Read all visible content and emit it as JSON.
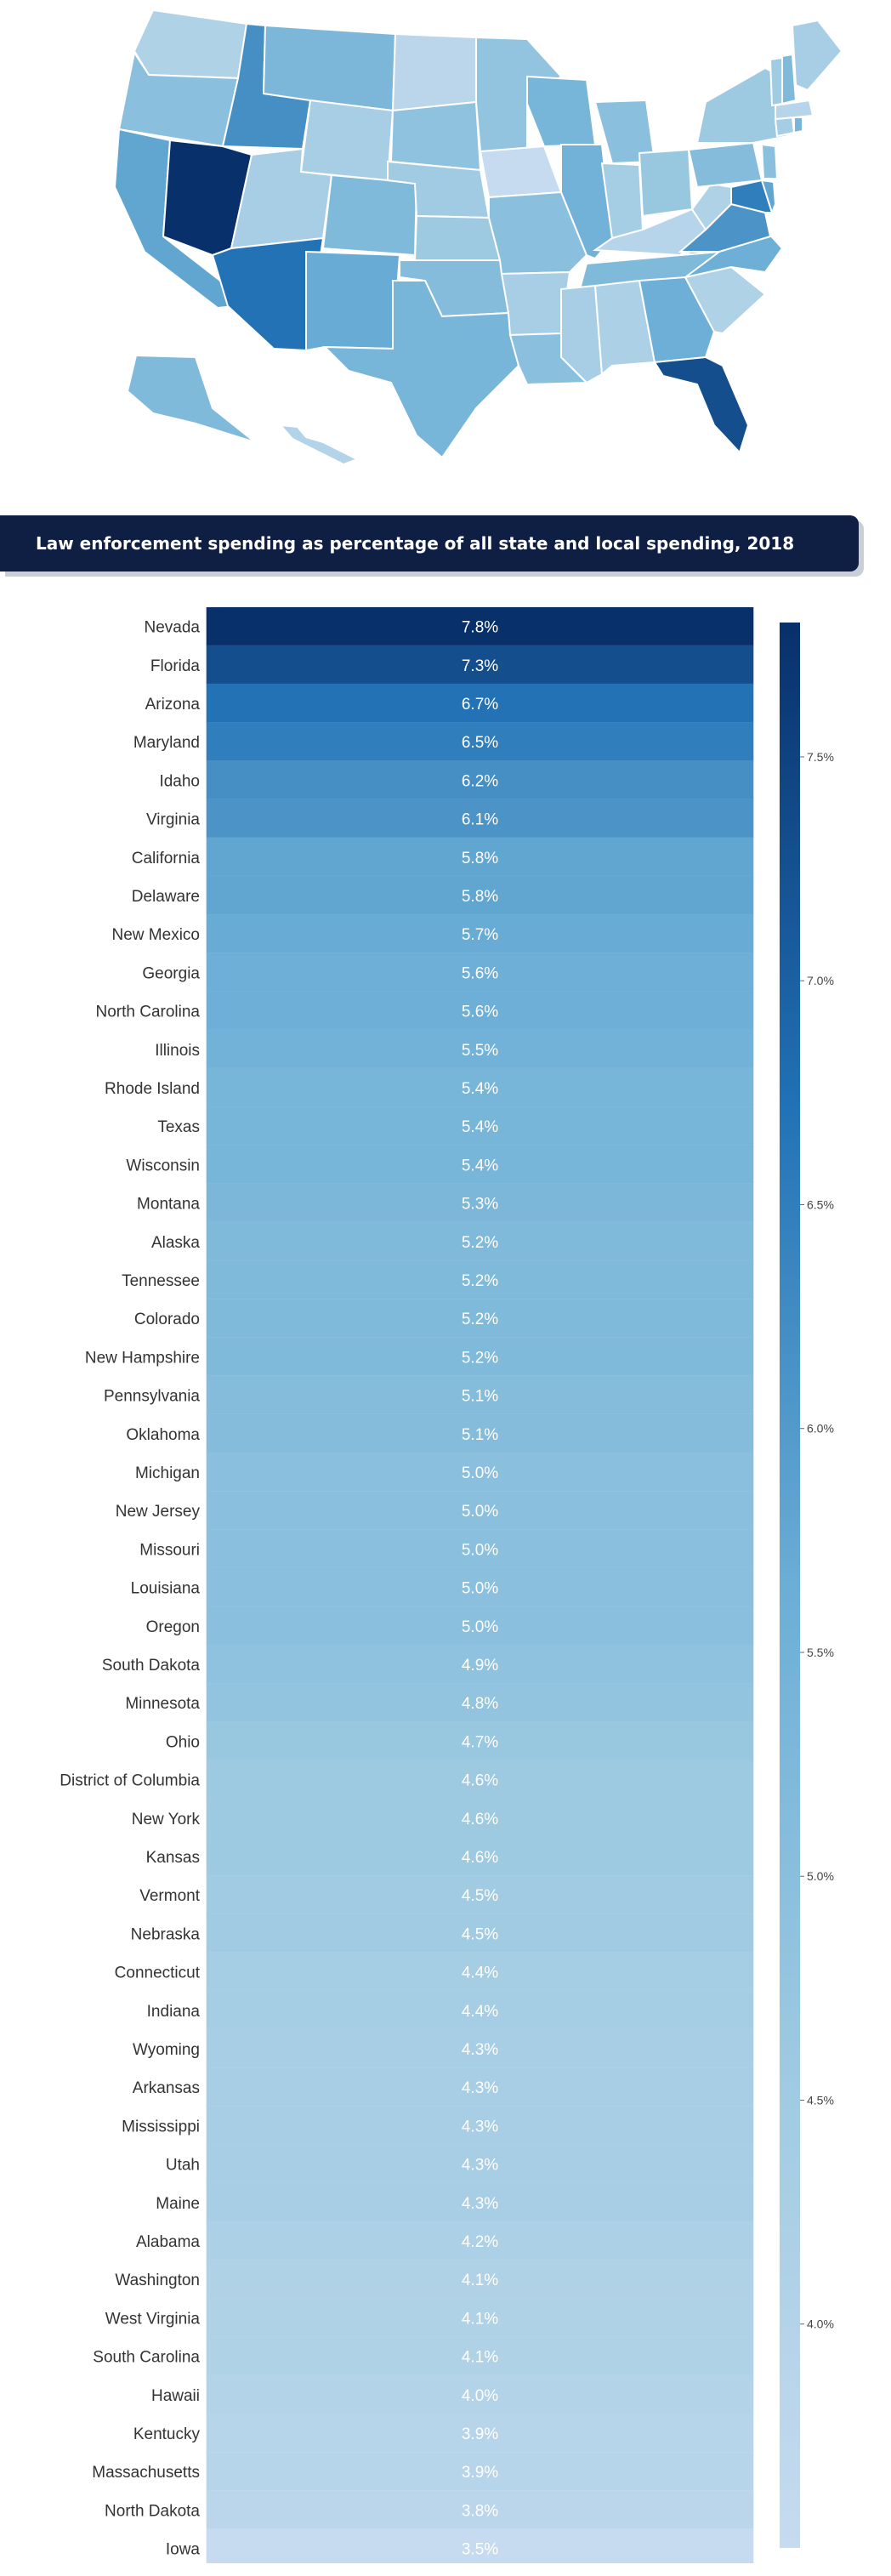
{
  "title": "Law enforcement spending as percentage of all state and local spending, 2018",
  "colors": {
    "low": "#c6dbef",
    "high": "#08306b",
    "banner": "#0f1f44"
  },
  "chart_data": {
    "type": "heatmap",
    "title": "Law enforcement spending as percentage of all state and local spending, 2018",
    "unit": "%",
    "categories": [
      "Nevada",
      "Florida",
      "Arizona",
      "Maryland",
      "Idaho",
      "Virginia",
      "California",
      "Delaware",
      "New Mexico",
      "Georgia",
      "North Carolina",
      "Illinois",
      "Rhode Island",
      "Texas",
      "Wisconsin",
      "Montana",
      "Alaska",
      "Tennessee",
      "Colorado",
      "New Hampshire",
      "Pennsylvania",
      "Oklahoma",
      "Michigan",
      "New Jersey",
      "Missouri",
      "Louisiana",
      "Oregon",
      "South Dakota",
      "Minnesota",
      "Ohio",
      "District of Columbia",
      "New York",
      "Kansas",
      "Vermont",
      "Nebraska",
      "Connecticut",
      "Indiana",
      "Wyoming",
      "Arkansas",
      "Mississippi",
      "Utah",
      "Maine",
      "Alabama",
      "Washington",
      "West Virginia",
      "South Carolina",
      "Hawaii",
      "Kentucky",
      "Massachusetts",
      "North Dakota",
      "Iowa"
    ],
    "values": [
      7.8,
      7.3,
      6.7,
      6.5,
      6.2,
      6.1,
      5.8,
      5.8,
      5.7,
      5.6,
      5.6,
      5.5,
      5.4,
      5.4,
      5.4,
      5.3,
      5.2,
      5.2,
      5.2,
      5.2,
      5.1,
      5.1,
      5.0,
      5.0,
      5.0,
      5.0,
      5.0,
      4.9,
      4.8,
      4.7,
      4.6,
      4.6,
      4.6,
      4.5,
      4.5,
      4.4,
      4.4,
      4.3,
      4.3,
      4.3,
      4.3,
      4.3,
      4.2,
      4.1,
      4.1,
      4.1,
      4.0,
      3.9,
      3.9,
      3.8,
      3.5
    ],
    "value_labels": [
      "7.8%",
      "7.3%",
      "6.7%",
      "6.5%",
      "6.2%",
      "6.1%",
      "5.8%",
      "5.8%",
      "5.7%",
      "5.6%",
      "5.6%",
      "5.5%",
      "5.4%",
      "5.4%",
      "5.4%",
      "5.3%",
      "5.2%",
      "5.2%",
      "5.2%",
      "5.2%",
      "5.1%",
      "5.1%",
      "5.0%",
      "5.0%",
      "5.0%",
      "5.0%",
      "5.0%",
      "4.9%",
      "4.8%",
      "4.7%",
      "4.6%",
      "4.6%",
      "4.6%",
      "4.5%",
      "4.5%",
      "4.4%",
      "4.4%",
      "4.3%",
      "4.3%",
      "4.3%",
      "4.3%",
      "4.3%",
      "4.2%",
      "4.1%",
      "4.1%",
      "4.1%",
      "4.0%",
      "3.9%",
      "3.9%",
      "3.8%",
      "3.5%"
    ],
    "colorbar": {
      "range": [
        3.5,
        7.8
      ],
      "ticks": [
        7.5,
        7.0,
        6.5,
        6.0,
        5.5,
        5.0,
        4.5,
        4.0
      ],
      "tick_labels": [
        "7.5%",
        "7.0%",
        "6.5%",
        "6.0%",
        "5.5%",
        "5.0%",
        "4.5%",
        "4.0%"
      ]
    }
  },
  "map": {
    "states": [
      {
        "name": "Nevada",
        "value": 7.8
      },
      {
        "name": "Florida",
        "value": 7.3
      },
      {
        "name": "Arizona",
        "value": 6.7
      },
      {
        "name": "Maryland",
        "value": 6.5
      },
      {
        "name": "Idaho",
        "value": 6.2
      },
      {
        "name": "Virginia",
        "value": 6.1
      },
      {
        "name": "California",
        "value": 5.8
      },
      {
        "name": "Delaware",
        "value": 5.8
      },
      {
        "name": "New Mexico",
        "value": 5.7
      },
      {
        "name": "Georgia",
        "value": 5.6
      },
      {
        "name": "North Carolina",
        "value": 5.6
      },
      {
        "name": "Illinois",
        "value": 5.5
      },
      {
        "name": "Rhode Island",
        "value": 5.4
      },
      {
        "name": "Texas",
        "value": 5.4
      },
      {
        "name": "Wisconsin",
        "value": 5.4
      },
      {
        "name": "Montana",
        "value": 5.3
      },
      {
        "name": "Alaska",
        "value": 5.2
      },
      {
        "name": "Tennessee",
        "value": 5.2
      },
      {
        "name": "Colorado",
        "value": 5.2
      },
      {
        "name": "New Hampshire",
        "value": 5.2
      },
      {
        "name": "Pennsylvania",
        "value": 5.1
      },
      {
        "name": "Oklahoma",
        "value": 5.1
      },
      {
        "name": "Michigan",
        "value": 5.0
      },
      {
        "name": "New Jersey",
        "value": 5.0
      },
      {
        "name": "Missouri",
        "value": 5.0
      },
      {
        "name": "Louisiana",
        "value": 5.0
      },
      {
        "name": "Oregon",
        "value": 5.0
      },
      {
        "name": "South Dakota",
        "value": 4.9
      },
      {
        "name": "Minnesota",
        "value": 4.8
      },
      {
        "name": "Ohio",
        "value": 4.7
      },
      {
        "name": "New York",
        "value": 4.6
      },
      {
        "name": "Kansas",
        "value": 4.6
      },
      {
        "name": "Vermont",
        "value": 4.5
      },
      {
        "name": "Nebraska",
        "value": 4.5
      },
      {
        "name": "Connecticut",
        "value": 4.4
      },
      {
        "name": "Indiana",
        "value": 4.4
      },
      {
        "name": "Wyoming",
        "value": 4.3
      },
      {
        "name": "Arkansas",
        "value": 4.3
      },
      {
        "name": "Mississippi",
        "value": 4.3
      },
      {
        "name": "Utah",
        "value": 4.3
      },
      {
        "name": "Maine",
        "value": 4.3
      },
      {
        "name": "Alabama",
        "value": 4.2
      },
      {
        "name": "Washington",
        "value": 4.1
      },
      {
        "name": "West Virginia",
        "value": 4.1
      },
      {
        "name": "South Carolina",
        "value": 4.1
      },
      {
        "name": "Hawaii",
        "value": 4.0
      },
      {
        "name": "Kentucky",
        "value": 3.9
      },
      {
        "name": "Massachusetts",
        "value": 3.9
      },
      {
        "name": "North Dakota",
        "value": 3.8
      },
      {
        "name": "Iowa",
        "value": 3.5
      }
    ]
  }
}
